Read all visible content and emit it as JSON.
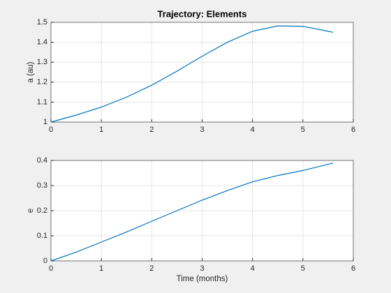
{
  "chart_data": [
    {
      "type": "line",
      "title": "Trajectory: Elements",
      "ylabel": "a (au)",
      "x": [
        0,
        0.5,
        1,
        1.5,
        2,
        2.5,
        3,
        3.5,
        4,
        4.5,
        5,
        5.5,
        5.6
      ],
      "series": [
        {
          "color": "#0072bd",
          "values": [
            1.0,
            1.035,
            1.075,
            1.125,
            1.185,
            1.255,
            1.33,
            1.4,
            1.455,
            1.482,
            1.48,
            1.455,
            1.45
          ]
        }
      ],
      "xlim": [
        0,
        6
      ],
      "xticks": [
        0,
        1,
        2,
        3,
        4,
        5,
        6
      ],
      "ylim": [
        1,
        1.5
      ],
      "yticks": [
        1,
        1.1,
        1.2,
        1.3,
        1.4,
        1.5
      ],
      "grid": true
    },
    {
      "type": "line",
      "xlabel": "Time (months)",
      "ylabel": "e",
      "x": [
        0,
        0.5,
        1,
        1.5,
        2,
        2.5,
        3,
        3.5,
        4,
        4.5,
        5,
        5.5,
        5.6
      ],
      "series": [
        {
          "color": "#0072bd",
          "values": [
            0,
            0.035,
            0.075,
            0.115,
            0.158,
            0.2,
            0.242,
            0.28,
            0.315,
            0.34,
            0.36,
            0.385,
            0.39
          ]
        }
      ],
      "xlim": [
        0,
        6
      ],
      "xticks": [
        0,
        1,
        2,
        3,
        4,
        5,
        6
      ],
      "ylim": [
        0,
        0.4
      ],
      "yticks": [
        0,
        0.1,
        0.2,
        0.3,
        0.4
      ],
      "grid": true
    }
  ]
}
